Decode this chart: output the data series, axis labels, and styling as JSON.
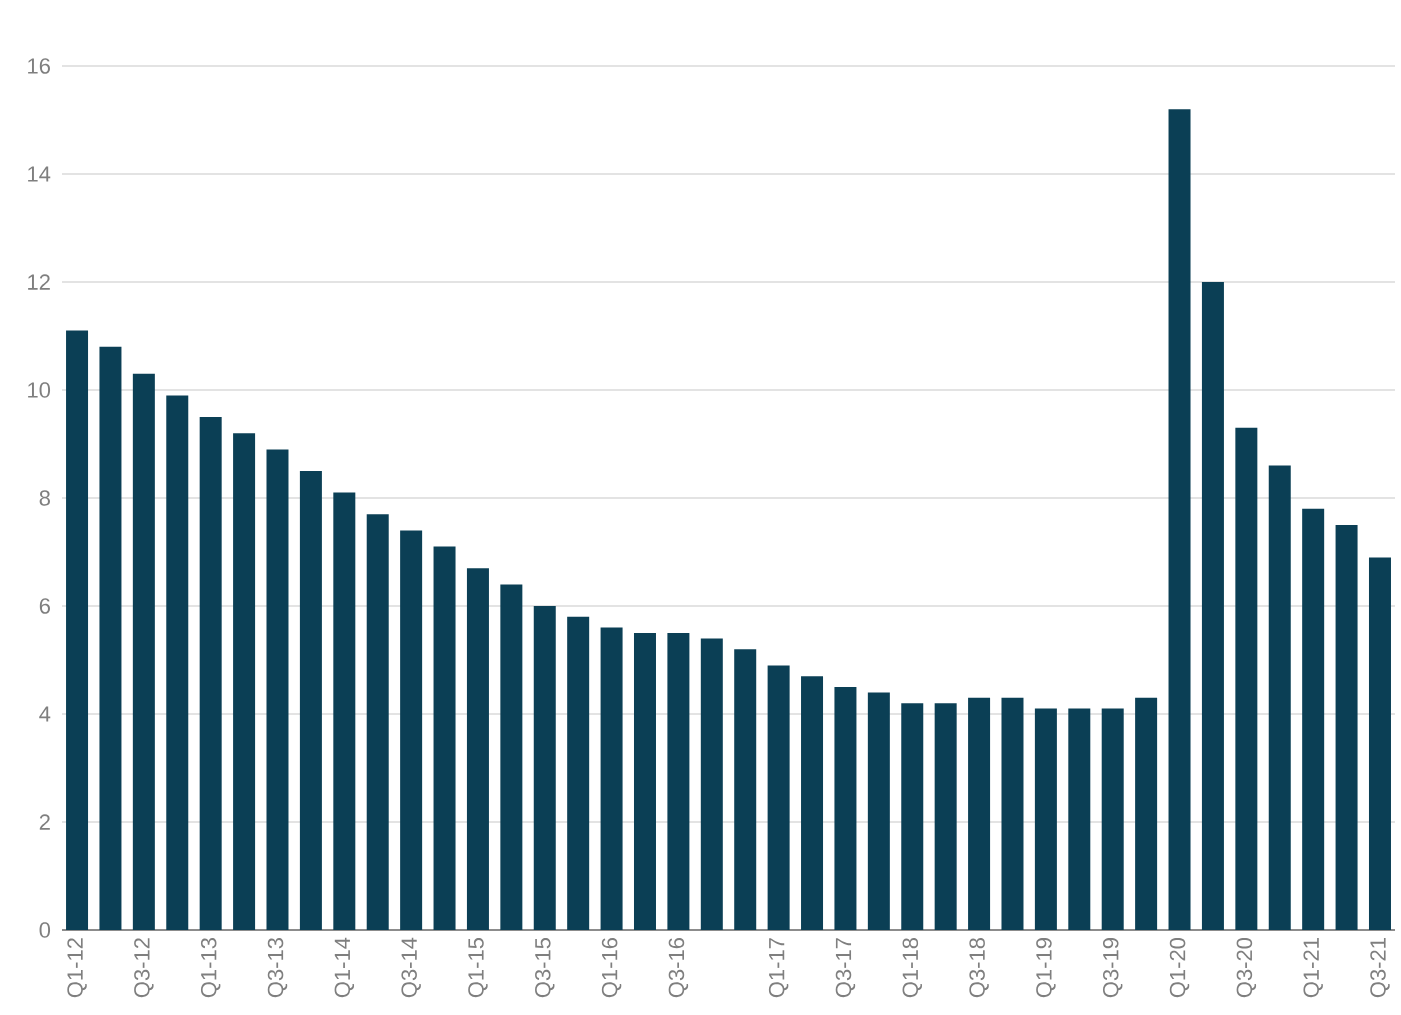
{
  "chart_data": {
    "type": "bar",
    "categories": [
      "Q1-12",
      null,
      "Q3-12",
      null,
      "Q1-13",
      null,
      "Q3-13",
      null,
      "Q1-14",
      null,
      "Q3-14",
      null,
      "Q1-15",
      null,
      "Q3-15",
      null,
      "Q1-16",
      null,
      "Q3-16",
      null,
      null,
      "Q1-17",
      null,
      "Q3-17",
      null,
      "Q1-18",
      null,
      "Q3-18",
      null,
      "Q1-19",
      null,
      "Q3-19",
      null,
      "Q1-20",
      null,
      "Q3-20",
      null,
      "Q1-21",
      null,
      "Q3-21"
    ],
    "values": [
      11.1,
      10.8,
      10.3,
      9.9,
      9.5,
      9.2,
      8.9,
      8.5,
      8.1,
      7.7,
      7.4,
      7.1,
      6.7,
      6.4,
      6.0,
      5.8,
      5.6,
      5.5,
      5.5,
      5.4,
      5.2,
      4.9,
      4.7,
      4.5,
      4.4,
      4.2,
      4.2,
      4.3,
      4.3,
      4.1,
      4.1,
      4.1,
      4.3,
      15.2,
      12.0,
      9.3,
      8.6,
      7.8,
      7.5,
      6.9
    ],
    "color": "#0b3f55",
    "ylim": [
      0,
      16
    ],
    "yticks": [
      0,
      2,
      4,
      6,
      8,
      10,
      12,
      14,
      16
    ],
    "grid": "y"
  }
}
